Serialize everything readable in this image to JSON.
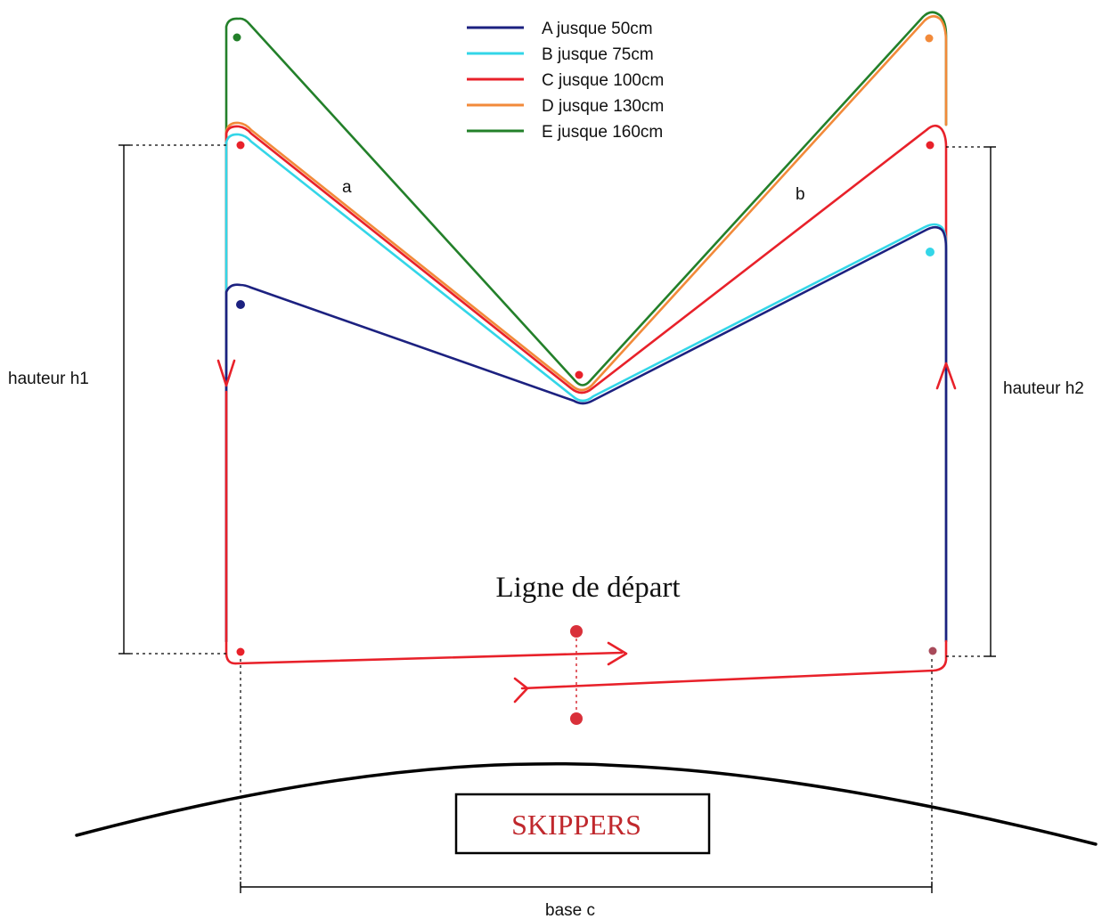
{
  "legend": [
    {
      "label": "A jusque 50cm",
      "color": "#1c2180"
    },
    {
      "label": "B jusque 75cm",
      "color": "#33d6e8"
    },
    {
      "label": "C jusque 100cm",
      "color": "#e8212a"
    },
    {
      "label": "D jusque 130cm",
      "color": "#f28a3a"
    },
    {
      "label": "E jusque 160cm",
      "color": "#23802a"
    }
  ],
  "labels": {
    "leg_a": "a",
    "leg_b": "b",
    "height_left": "hauteur h1",
    "height_right": "hauteur h2",
    "base": "base c",
    "start_line": "Ligne de départ",
    "committee": "SKIPPERS"
  },
  "colors": {
    "start_course": "#e8212a",
    "marker_red": "#d9303a",
    "marker_navy": "#1c2180",
    "marker_cyan": "#33d6e8",
    "marker_orange": "#f28a3a",
    "marker_green": "#23802a",
    "box_text": "#c0282d"
  }
}
